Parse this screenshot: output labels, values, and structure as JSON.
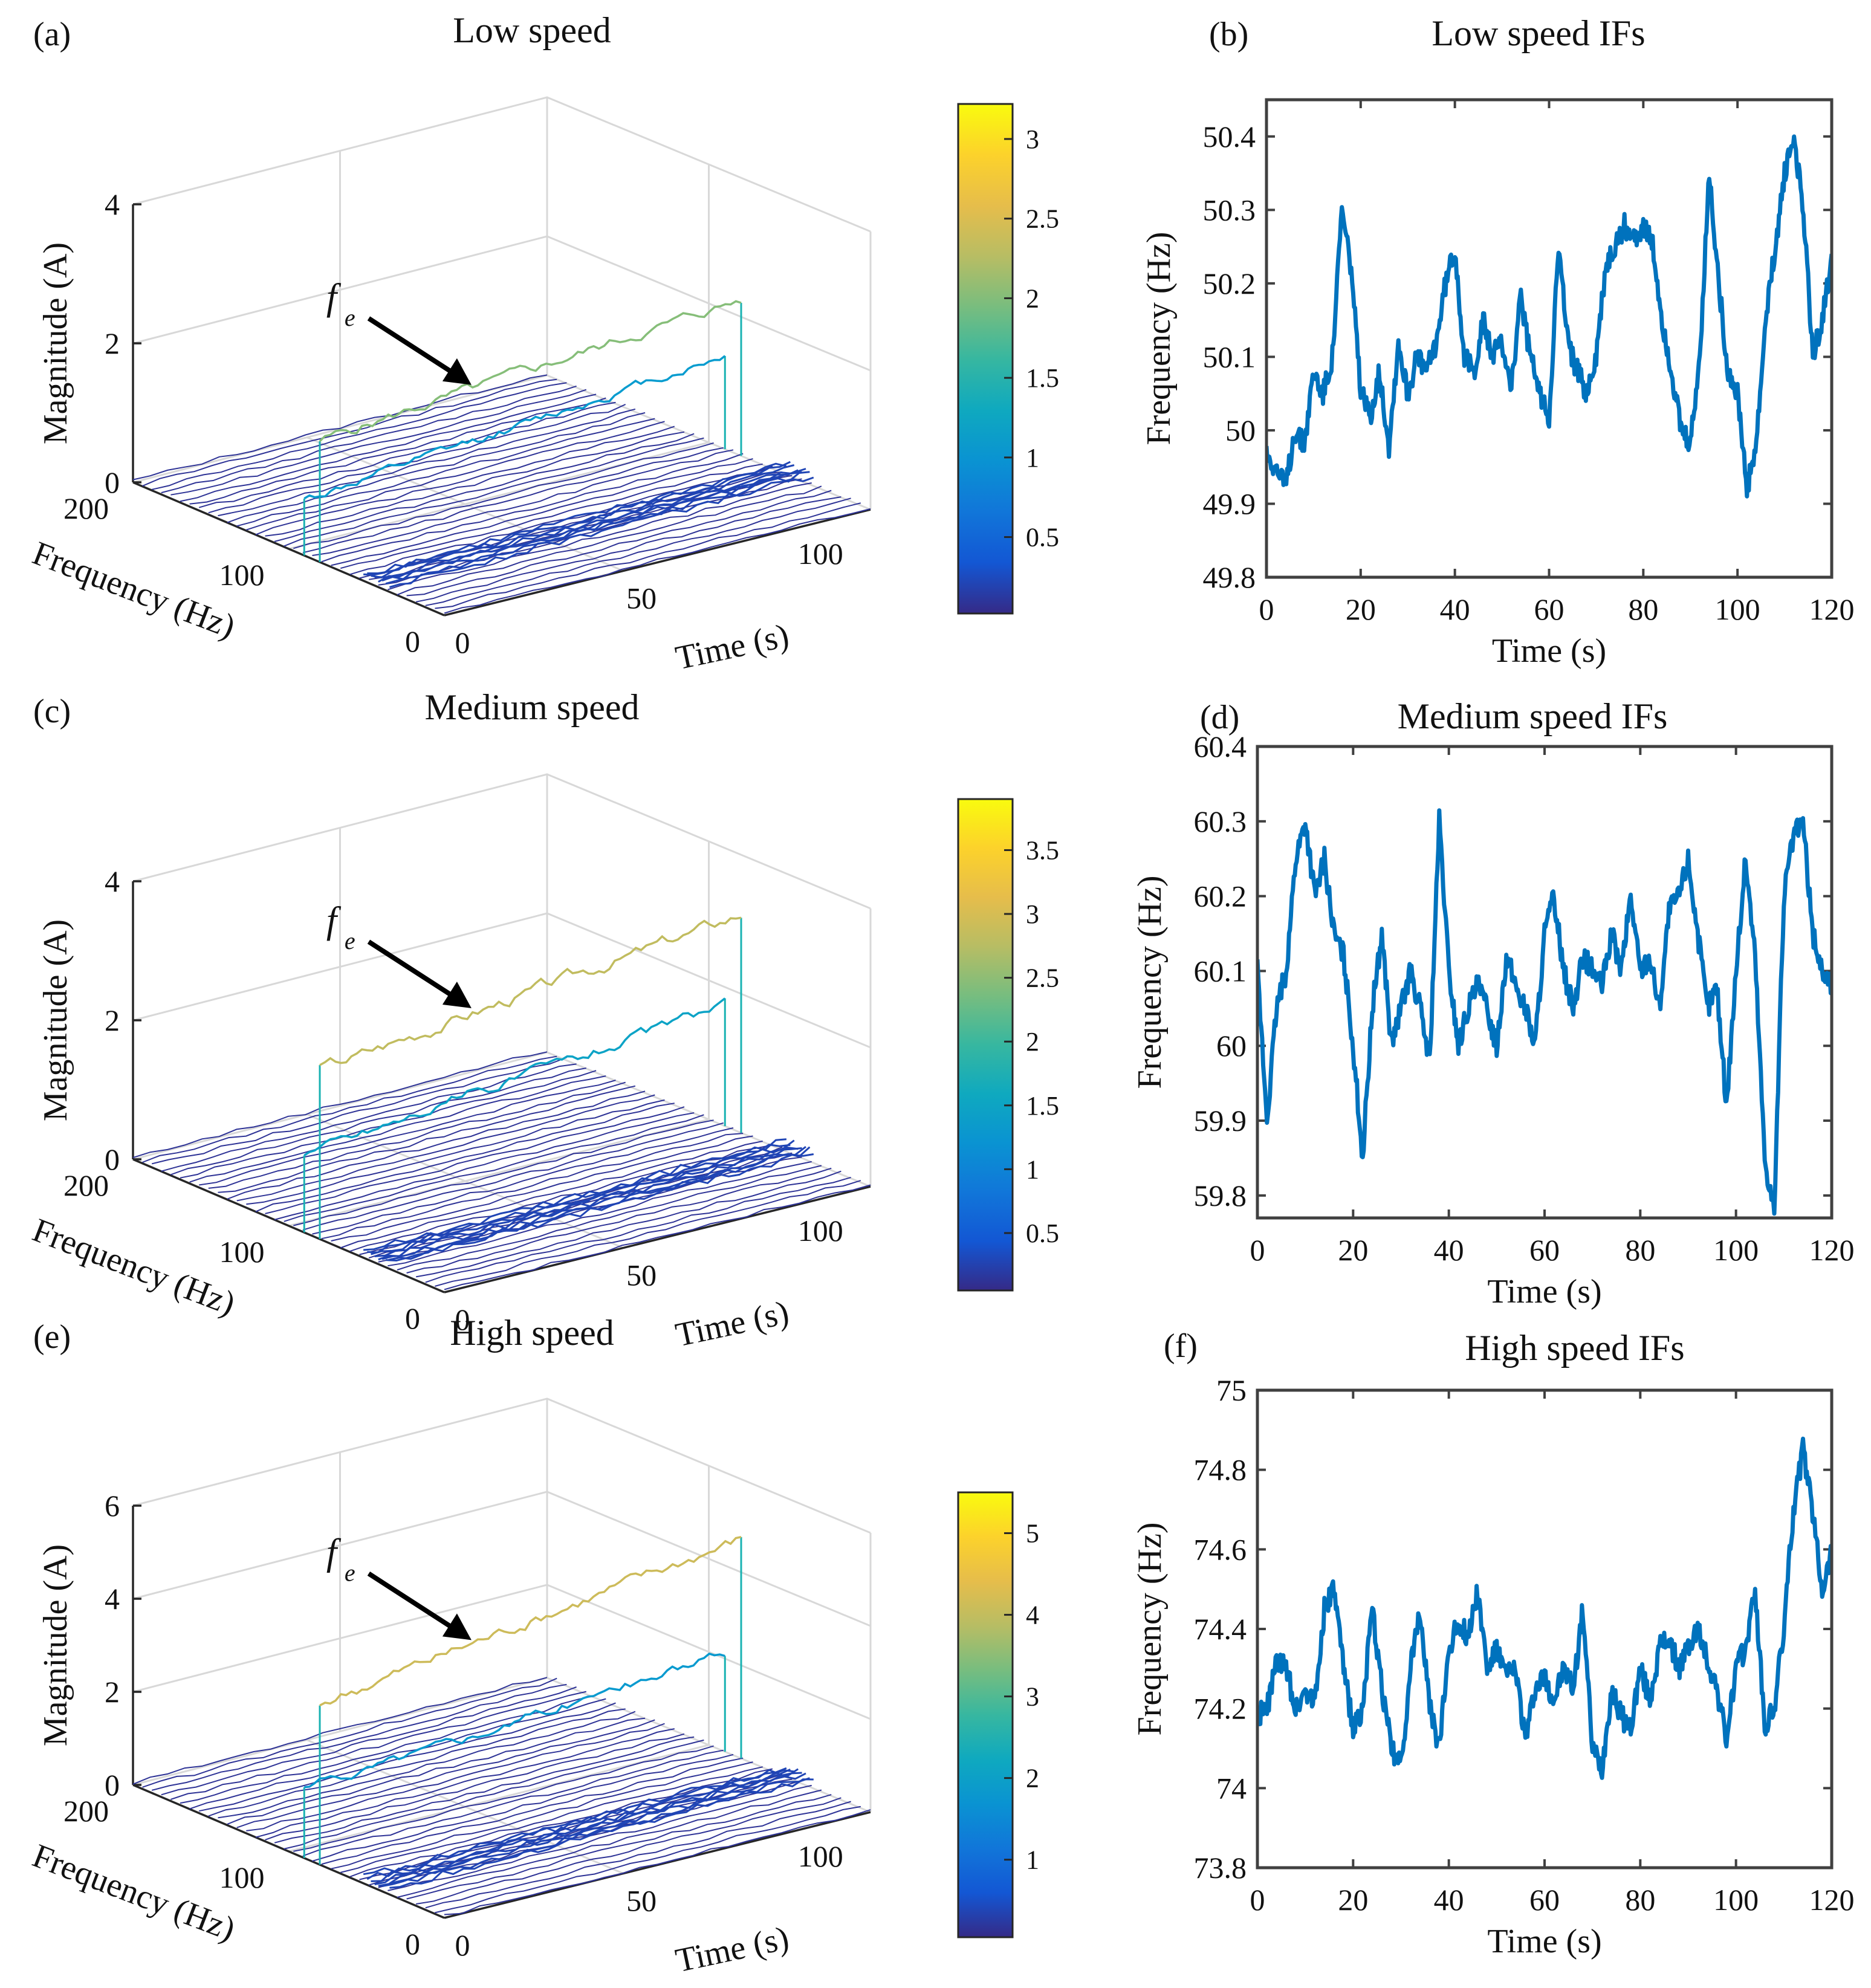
{
  "chart_data": [
    {
      "id": "a",
      "panel_label": "(a)",
      "type": "waterfall3d",
      "title": "Low speed",
      "zlabel": "Magnitude (A)",
      "xlabel": "Frequency (Hz)",
      "ylabel": "Time (s)",
      "z_ticks": [
        "0",
        "2",
        "4"
      ],
      "z_max": 4,
      "freq_ticks": [
        "200",
        "100",
        "0"
      ],
      "time_ticks": [
        "0",
        "50",
        "100"
      ],
      "colorbar_ticks": [
        "0.5",
        "1",
        "1.5",
        "2",
        "2.5",
        "3"
      ],
      "colorbar_range": [
        0.02,
        3.22
      ],
      "annotation": {
        "text": "f",
        "subscript": "e"
      },
      "ridges": [
        {
          "name": "fe",
          "start": 1.75,
          "end": 2.25,
          "ripple": 0.06
        },
        {
          "name": "second",
          "start": 0.8,
          "end": 1.35,
          "ripple": 0.05
        }
      ]
    },
    {
      "id": "b",
      "panel_label": "(b)",
      "type": "line",
      "title": "Low speed IFs",
      "xlabel": "Time (s)",
      "ylabel": "Frequency (Hz)",
      "xlim": [
        0,
        120
      ],
      "ylim": [
        49.8,
        50.45
      ],
      "x_ticks": [
        0,
        20,
        40,
        60,
        80,
        100,
        120
      ],
      "y_ticks": [
        49.8,
        49.9,
        50,
        50.1,
        50.2,
        50.3,
        50.4
      ],
      "y_tick_labels": [
        "49.8",
        "49.9",
        "50",
        "50.1",
        "50.2",
        "50.3",
        "50.4"
      ],
      "color": "#0072BD",
      "x": [
        0,
        2,
        4,
        6,
        8,
        10,
        12,
        14,
        16,
        18,
        20,
        22,
        24,
        26,
        28,
        30,
        32,
        34,
        36,
        38,
        40,
        42,
        44,
        46,
        48,
        50,
        52,
        54,
        56,
        58,
        60,
        62,
        64,
        66,
        68,
        70,
        72,
        74,
        76,
        78,
        80,
        82,
        84,
        86,
        88,
        90,
        92,
        94,
        96,
        98,
        100,
        102,
        104,
        106,
        108,
        110,
        112,
        114,
        116,
        118,
        120
      ],
      "values": [
        49.97,
        49.95,
        49.92,
        50.0,
        49.98,
        50.08,
        50.05,
        50.1,
        50.3,
        50.22,
        50.05,
        50.02,
        50.08,
        49.98,
        50.12,
        50.05,
        50.1,
        50.08,
        50.12,
        50.2,
        50.25,
        50.1,
        50.08,
        50.15,
        50.1,
        50.12,
        50.06,
        50.18,
        50.1,
        50.05,
        50.02,
        50.25,
        50.12,
        50.08,
        50.05,
        50.1,
        50.22,
        50.25,
        50.28,
        50.26,
        50.28,
        50.25,
        50.15,
        50.08,
        50.0,
        49.98,
        50.1,
        50.35,
        50.2,
        50.08,
        50.05,
        49.92,
        49.98,
        50.15,
        50.25,
        50.35,
        50.4,
        50.3,
        50.1,
        50.15,
        50.24
      ]
    },
    {
      "id": "c",
      "panel_label": "(c)",
      "type": "waterfall3d",
      "title": "Medium speed",
      "zlabel": "Magnitude (A)",
      "xlabel": "Frequency (Hz)",
      "ylabel": "Time (s)",
      "z_ticks": [
        "0",
        "2",
        "4"
      ],
      "z_max": 4,
      "freq_ticks": [
        "200",
        "100",
        "0"
      ],
      "time_ticks": [
        "0",
        "50",
        "100"
      ],
      "colorbar_ticks": [
        "0.5",
        "1",
        "1.5",
        "2",
        "2.5",
        "3",
        "3.5"
      ],
      "colorbar_range": [
        0.05,
        3.9
      ],
      "annotation": {
        "text": "f",
        "subscript": "e"
      },
      "ridges": [
        {
          "name": "fe",
          "start": 2.45,
          "end": 3.15,
          "ripple": 0.07
        },
        {
          "name": "second",
          "start": 1.15,
          "end": 1.75,
          "ripple": 0.06
        }
      ]
    },
    {
      "id": "d",
      "panel_label": "(d)",
      "type": "line",
      "title": "Medium speed IFs",
      "xlabel": "Time (s)",
      "ylabel": "Frequency (Hz)",
      "xlim": [
        0,
        120
      ],
      "ylim": [
        59.77,
        60.4
      ],
      "x_ticks": [
        0,
        20,
        40,
        60,
        80,
        100,
        120
      ],
      "y_ticks": [
        59.8,
        59.9,
        60,
        60.1,
        60.2,
        60.3,
        60.4
      ],
      "y_tick_labels": [
        "59.8",
        "59.9",
        "60",
        "60.1",
        "60.2",
        "60.3",
        "60.4"
      ],
      "color": "#0072BD",
      "x": [
        0,
        2,
        4,
        6,
        8,
        10,
        12,
        14,
        16,
        18,
        20,
        22,
        24,
        26,
        28,
        30,
        32,
        34,
        36,
        38,
        40,
        42,
        44,
        46,
        48,
        50,
        52,
        54,
        56,
        58,
        60,
        62,
        64,
        66,
        68,
        70,
        72,
        74,
        76,
        78,
        80,
        82,
        84,
        86,
        88,
        90,
        92,
        94,
        96,
        98,
        100,
        102,
        104,
        106,
        108,
        110,
        112,
        114,
        116,
        118,
        120
      ],
      "values": [
        60.1,
        59.9,
        60.05,
        60.1,
        60.25,
        60.3,
        60.2,
        60.25,
        60.15,
        60.12,
        60.0,
        59.85,
        60.05,
        60.15,
        60.0,
        60.05,
        60.1,
        60.05,
        59.98,
        60.3,
        60.1,
        60.0,
        60.05,
        60.08,
        60.05,
        60.0,
        60.12,
        60.08,
        60.05,
        60.0,
        60.15,
        60.2,
        60.1,
        60.05,
        60.12,
        60.1,
        60.08,
        60.15,
        60.1,
        60.2,
        60.1,
        60.12,
        60.05,
        60.18,
        60.2,
        60.25,
        60.15,
        60.05,
        60.08,
        59.92,
        60.1,
        60.25,
        60.12,
        59.85,
        59.78,
        60.2,
        60.28,
        60.3,
        60.15,
        60.1,
        60.08
      ]
    },
    {
      "id": "e",
      "panel_label": "(e)",
      "type": "waterfall3d",
      "title": "High speed",
      "zlabel": "Magnitude (A)",
      "xlabel": "Frequency (Hz)",
      "ylabel": "Time (s)",
      "z_ticks": [
        "0",
        "2",
        "4",
        "6"
      ],
      "z_max": 6,
      "freq_ticks": [
        "200",
        "100",
        "0"
      ],
      "time_ticks": [
        "0",
        "50",
        "100"
      ],
      "colorbar_ticks": [
        "1",
        "2",
        "3",
        "4",
        "5"
      ],
      "colorbar_range": [
        0.05,
        5.5
      ],
      "annotation": {
        "text": "f",
        "subscript": "e"
      },
      "ridges": [
        {
          "name": "fe",
          "start": 3.45,
          "end": 4.7,
          "ripple": 0.1
        },
        {
          "name": "second",
          "start": 1.5,
          "end": 2.1,
          "ripple": 0.08
        }
      ]
    },
    {
      "id": "f",
      "panel_label": "(f)",
      "type": "line",
      "title": "High speed IFs",
      "xlabel": "Time (s)",
      "ylabel": "Frequency (Hz)",
      "xlim": [
        0,
        120
      ],
      "ylim": [
        73.8,
        75.0
      ],
      "x_ticks": [
        0,
        20,
        40,
        60,
        80,
        100,
        120
      ],
      "y_ticks": [
        73.8,
        74,
        74.2,
        74.4,
        74.6,
        74.8,
        75
      ],
      "y_tick_labels": [
        "73.8",
        "74",
        "74.2",
        "74.4",
        "74.6",
        "74.8",
        "75"
      ],
      "color": "#0072BD",
      "x": [
        0,
        2,
        4,
        6,
        8,
        10,
        12,
        14,
        16,
        18,
        20,
        22,
        24,
        26,
        28,
        30,
        32,
        34,
        36,
        38,
        40,
        42,
        44,
        46,
        48,
        50,
        52,
        54,
        56,
        58,
        60,
        62,
        64,
        66,
        68,
        70,
        72,
        74,
        76,
        78,
        80,
        82,
        84,
        86,
        88,
        90,
        92,
        94,
        96,
        98,
        100,
        102,
        104,
        106,
        108,
        110,
        112,
        114,
        116,
        118,
        120
      ],
      "values": [
        74.18,
        74.2,
        74.32,
        74.3,
        74.2,
        74.25,
        74.22,
        74.45,
        74.5,
        74.3,
        74.15,
        74.2,
        74.45,
        74.25,
        74.1,
        74.05,
        74.3,
        74.45,
        74.2,
        74.1,
        74.35,
        74.42,
        74.38,
        74.5,
        74.3,
        74.35,
        74.28,
        74.3,
        74.12,
        74.25,
        74.28,
        74.22,
        74.3,
        74.25,
        74.45,
        74.1,
        74.05,
        74.25,
        74.18,
        74.15,
        74.3,
        74.22,
        74.35,
        74.38,
        74.3,
        74.35,
        74.4,
        74.32,
        74.25,
        74.12,
        74.3,
        74.35,
        74.5,
        74.15,
        74.2,
        74.4,
        74.7,
        74.85,
        74.7,
        74.5,
        74.6
      ]
    }
  ]
}
